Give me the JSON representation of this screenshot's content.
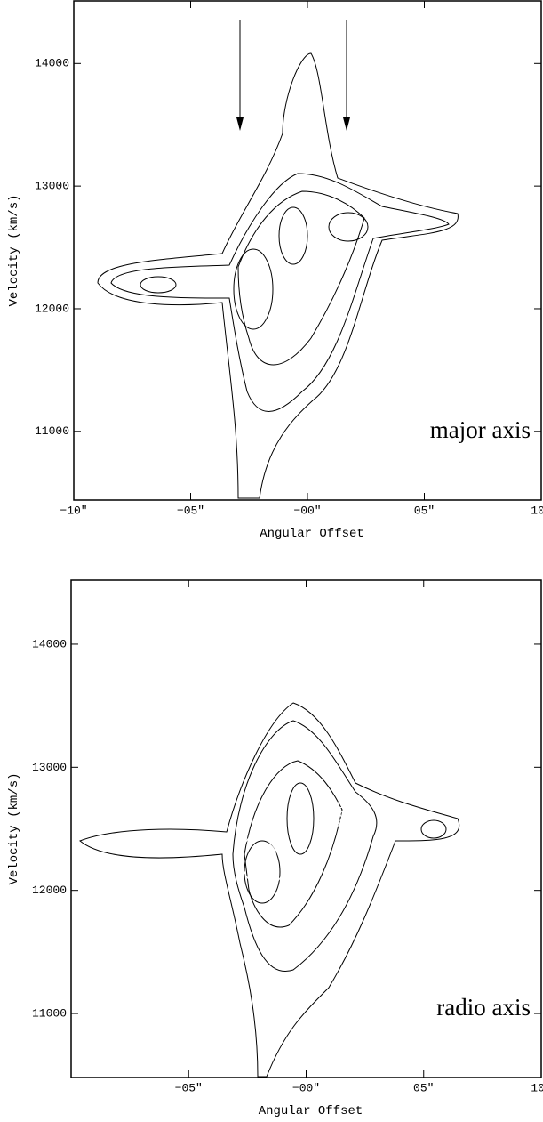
{
  "chart_data": [
    {
      "type": "image",
      "annotation": "major axis",
      "x_label": "Angular Offset",
      "y_label": "Velocity (km/s)",
      "xlim": [
        -10,
        10
      ],
      "ylim": [
        10440,
        14510
      ],
      "xticks": [
        {
          "value": -10,
          "label": "−10″"
        },
        {
          "value": -5,
          "label": "−05″"
        },
        {
          "value": 0,
          "label": "−00″"
        },
        {
          "value": 5,
          "label": "05″"
        },
        {
          "value": 10,
          "label": "10″"
        }
      ],
      "yticks": [
        11000,
        12000,
        13000,
        14000
      ]
    },
    {
      "type": "image",
      "annotation": "radio axis",
      "x_label": "Angular Offset",
      "y_label": "Velocity (km/s)",
      "xlim": [
        -10,
        10
      ],
      "ylim": [
        10480,
        14520
      ],
      "xticks": [
        {
          "value": -5,
          "label": "−05″"
        },
        {
          "value": 0,
          "label": "−00″"
        },
        {
          "value": 5,
          "label": "05″"
        },
        {
          "value": 10,
          "label": "10″"
        }
      ],
      "yticks": [
        11000,
        12000,
        13000,
        14000
      ]
    }
  ]
}
